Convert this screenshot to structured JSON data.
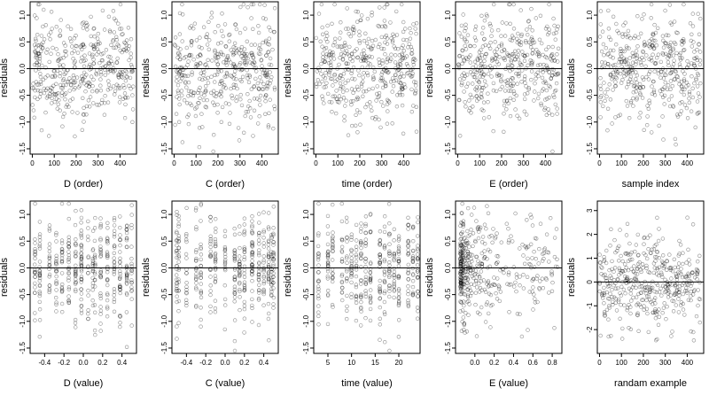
{
  "chart_data": [
    {
      "type": "scatter",
      "xlabel": "D (order)",
      "ylabel": "residuals",
      "xlim": [
        -10,
        475
      ],
      "ylim": [
        -1.6,
        1.25
      ],
      "xticks": [
        "0",
        "100",
        "200",
        "300",
        "400"
      ],
      "yticks": [
        "-1.5",
        "-1.0",
        "-0.5",
        "0.0",
        "0.5",
        "1.0"
      ],
      "hline": 0,
      "points": "order_uniform",
      "seed": 11
    },
    {
      "type": "scatter",
      "xlabel": "C (order)",
      "ylabel": "residuals",
      "xlim": [
        -10,
        475
      ],
      "ylim": [
        -1.6,
        1.25
      ],
      "xticks": [
        "0",
        "100",
        "200",
        "300",
        "400"
      ],
      "yticks": [
        "-1.5",
        "-1.0",
        "-0.5",
        "0.0",
        "0.5",
        "1.0"
      ],
      "hline": 0,
      "points": "order_uniform",
      "seed": 23
    },
    {
      "type": "scatter",
      "xlabel": "time (order)",
      "ylabel": "residuals",
      "xlim": [
        -10,
        475
      ],
      "ylim": [
        -1.6,
        1.25
      ],
      "xticks": [
        "0",
        "100",
        "200",
        "300",
        "400"
      ],
      "yticks": [
        "-1.5",
        "-1.0",
        "-0.5",
        "0.0",
        "0.5",
        "1.0"
      ],
      "hline": 0,
      "points": "order_uniform",
      "seed": 37
    },
    {
      "type": "scatter",
      "xlabel": "E (order)",
      "ylabel": "residuals",
      "xlim": [
        -10,
        475
      ],
      "ylim": [
        -1.6,
        1.25
      ],
      "xticks": [
        "0",
        "100",
        "200",
        "300",
        "400"
      ],
      "yticks": [
        "-1.5",
        "-1.0",
        "-0.5",
        "0.0",
        "0.5",
        "1.0"
      ],
      "hline": 0,
      "points": "order_uniform",
      "seed": 41
    },
    {
      "type": "scatter",
      "xlabel": "sample index",
      "ylabel": "residuals",
      "xlim": [
        -10,
        475
      ],
      "ylim": [
        -1.6,
        1.25
      ],
      "xticks": [
        "0",
        "100",
        "200",
        "300",
        "400"
      ],
      "yticks": [
        "-1.5",
        "-1.0",
        "-0.5",
        "0.0",
        "0.5",
        "1.0"
      ],
      "hline": 0,
      "points": "order_uniform",
      "seed": 53
    },
    {
      "type": "scatter",
      "xlabel": "D (value)",
      "ylabel": "residuals",
      "xlim": [
        -0.55,
        0.55
      ],
      "ylim": [
        -1.6,
        1.25
      ],
      "xticks": [
        "-0.4",
        "-0.2",
        "0.0",
        "0.2",
        "0.4"
      ],
      "yticks": [
        "-1.5",
        "-1.0",
        "-0.5",
        "0.0",
        "0.5",
        "1.0"
      ],
      "hline": 0,
      "points": "discrete_columns",
      "columns": [
        -0.5,
        -0.45,
        -0.35,
        -0.28,
        -0.22,
        -0.15,
        -0.08,
        -0.02,
        0.05,
        0.1,
        0.12,
        0.18,
        0.25,
        0.32,
        0.38,
        0.45,
        0.5
      ],
      "seed": 61
    },
    {
      "type": "scatter",
      "xlabel": "C (value)",
      "ylabel": "residuals",
      "xlim": [
        -0.55,
        0.55
      ],
      "ylim": [
        -1.6,
        1.25
      ],
      "xticks": [
        "-0.4",
        "-0.2",
        "0.0",
        "0.2",
        "0.4"
      ],
      "yticks": [
        "-1.5",
        "-1.0",
        "-0.5",
        "0.0",
        "0.5",
        "1.0"
      ],
      "hline": 0,
      "points": "discrete_columns",
      "columns": [
        -0.5,
        -0.48,
        -0.4,
        -0.3,
        -0.25,
        -0.15,
        -0.1,
        0.0,
        0.1,
        0.15,
        0.2,
        0.28,
        0.35,
        0.4,
        0.45,
        0.48,
        0.5
      ],
      "seed": 71
    },
    {
      "type": "scatter",
      "xlabel": "time (value)",
      "ylabel": "residuals",
      "xlim": [
        2,
        24.5
      ],
      "ylim": [
        -1.6,
        1.25
      ],
      "xticks": [
        "5",
        "10",
        "15",
        "20"
      ],
      "yticks": [
        "-1.5",
        "-1.0",
        "-0.5",
        "0.0",
        "0.5",
        "1.0"
      ],
      "hline": 0,
      "points": "discrete_columns",
      "columns": [
        3,
        5,
        6,
        8,
        9,
        10,
        11,
        12,
        13,
        14,
        16,
        17,
        18,
        19,
        20,
        22,
        23,
        24
      ],
      "seed": 83
    },
    {
      "type": "scatter",
      "xlabel": "E (value)",
      "ylabel": "residuals",
      "xlim": [
        -0.2,
        0.9
      ],
      "ylim": [
        -1.6,
        1.25
      ],
      "xticks": [
        "0.0",
        "0.2",
        "0.4",
        "0.6",
        "0.8"
      ],
      "yticks": [
        "-1.5",
        "-1.0",
        "-0.5",
        "0.0",
        "0.5",
        "1.0"
      ],
      "hline": 0,
      "points": "skewed_left",
      "seed": 97
    },
    {
      "type": "scatter",
      "xlabel": "randam example",
      "ylabel": "residuals",
      "xlim": [
        -10,
        475
      ],
      "ylim": [
        -3,
        3.4
      ],
      "xticks": [
        "0",
        "100",
        "200",
        "300",
        "400"
      ],
      "yticks": [
        "-2",
        "-1",
        "0",
        "1",
        "2",
        "3"
      ],
      "hline": 0,
      "points": "random_normal",
      "seed": 101
    }
  ]
}
